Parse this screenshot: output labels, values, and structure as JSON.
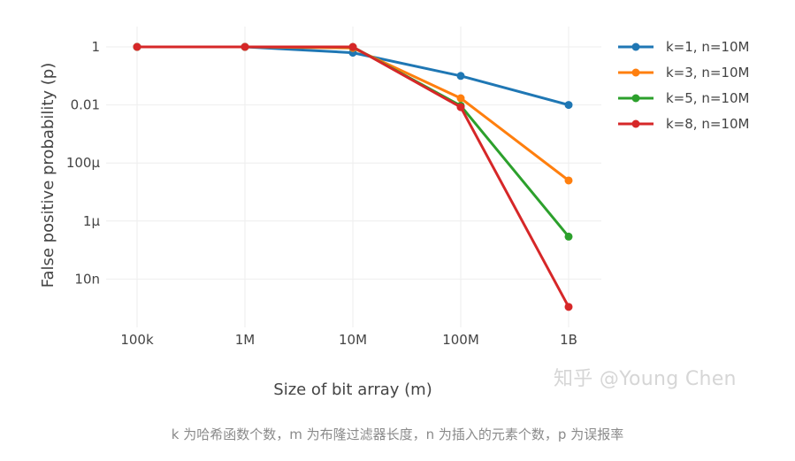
{
  "chart_data": {
    "type": "line",
    "title": "",
    "xlabel": "Size of bit array (m)",
    "ylabel": "False positive probability (p)",
    "x_scale": "log",
    "y_scale": "log",
    "x": [
      100000,
      1000000,
      10000000,
      100000000,
      1000000000
    ],
    "x_tick_labels": [
      "100k",
      "1M",
      "10M",
      "100M",
      "1B"
    ],
    "y_ticks": [
      1,
      0.01,
      0.0001,
      1e-06,
      1e-08
    ],
    "y_tick_labels": [
      "1",
      "0.01",
      "100μ",
      "1μ",
      "10n"
    ],
    "ylim": [
      2e-10,
      2
    ],
    "grid": true,
    "legend_position": "top-right",
    "series": [
      {
        "name": "k=1, n=10M",
        "color": "#1f77b4",
        "values": [
          1,
          1,
          0.63,
          0.1,
          0.01
        ]
      },
      {
        "name": "k=3, n=10M",
        "color": "#ff7f0e",
        "values": [
          1,
          1,
          0.92,
          0.017,
          2.5e-05
        ]
      },
      {
        "name": "k=5, n=10M",
        "color": "#2ca02c",
        "values": [
          1,
          1,
          0.99,
          0.0094,
          2.9e-07
        ]
      },
      {
        "name": "k=8, n=10M",
        "color": "#d62728",
        "values": [
          1,
          1,
          1,
          0.0084,
          1.1e-09
        ]
      }
    ]
  },
  "watermark": "知乎 @Young Chen",
  "caption": "k 为哈希函数个数，m 为布隆过滤器长度，n 为插入的元素个数，p 为误报率"
}
